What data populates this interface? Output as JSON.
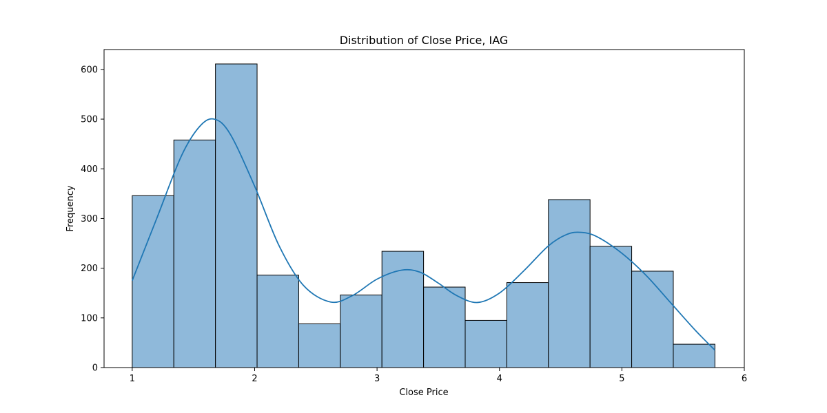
{
  "chart_data": {
    "type": "bar",
    "title": "Distribution of Close Price, IAG",
    "xlabel": "Close Price",
    "ylabel": "Frequency",
    "xlim": [
      0.77,
      6.0
    ],
    "ylim": [
      0,
      640
    ],
    "xticks": [
      1,
      2,
      3,
      4,
      5,
      6
    ],
    "yticks": [
      0,
      100,
      200,
      300,
      400,
      500,
      600
    ],
    "grid": false,
    "legend": "none",
    "bar_color": "#8fb9da",
    "edge_color": "#000000",
    "kde_color": "#1f77b4",
    "bins": [
      {
        "x0": 1.0,
        "x1": 1.34,
        "count": 346
      },
      {
        "x0": 1.34,
        "x1": 1.68,
        "count": 458
      },
      {
        "x0": 1.68,
        "x1": 2.02,
        "count": 611
      },
      {
        "x0": 2.02,
        "x1": 2.36,
        "count": 186
      },
      {
        "x0": 2.36,
        "x1": 2.7,
        "count": 88
      },
      {
        "x0": 2.7,
        "x1": 3.04,
        "count": 146
      },
      {
        "x0": 3.04,
        "x1": 3.38,
        "count": 234
      },
      {
        "x0": 3.38,
        "x1": 3.72,
        "count": 162
      },
      {
        "x0": 3.72,
        "x1": 4.06,
        "count": 95
      },
      {
        "x0": 4.06,
        "x1": 4.4,
        "count": 171
      },
      {
        "x0": 4.4,
        "x1": 4.74,
        "count": 338
      },
      {
        "x0": 4.74,
        "x1": 5.08,
        "count": 244
      },
      {
        "x0": 5.08,
        "x1": 5.42,
        "count": 194
      },
      {
        "x0": 5.42,
        "x1": 5.76,
        "count": 47
      }
    ],
    "kde": {
      "x": [
        1.0,
        1.2,
        1.4,
        1.55,
        1.67,
        1.8,
        2.0,
        2.2,
        2.4,
        2.62,
        2.8,
        3.0,
        3.2,
        3.35,
        3.5,
        3.65,
        3.82,
        4.0,
        4.2,
        4.4,
        4.55,
        4.67,
        4.8,
        5.0,
        5.2,
        5.4,
        5.6,
        5.76
      ],
      "y": [
        175,
        300,
        425,
        485,
        500,
        470,
        365,
        245,
        165,
        132,
        145,
        178,
        196,
        192,
        170,
        145,
        131,
        150,
        195,
        245,
        268,
        272,
        263,
        230,
        185,
        130,
        75,
        35
      ]
    }
  }
}
